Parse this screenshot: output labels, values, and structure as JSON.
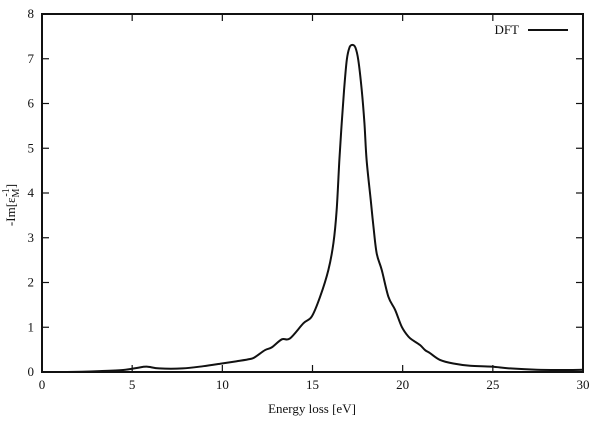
{
  "chart_data": {
    "type": "line",
    "title": "",
    "xlabel": "Energy loss [eV]",
    "ylabel": "-Im[ε_M^-1]",
    "ylabel_parts": {
      "main": "-Im[ε",
      "sub": "M",
      "sup": "-1",
      "close": "]"
    },
    "xlim": [
      0,
      30
    ],
    "ylim": [
      0,
      8
    ],
    "xticks": [
      0,
      5,
      10,
      15,
      20,
      25,
      30
    ],
    "yticks": [
      0,
      1,
      2,
      3,
      4,
      5,
      6,
      7,
      8
    ],
    "grid": false,
    "legend_position": "top-right",
    "series": [
      {
        "name": "DFT",
        "color": "#111111",
        "x": [
          0,
          1.4,
          3.2,
          4.5,
          5.25,
          5.8,
          6.5,
          7.8,
          8.95,
          9.97,
          10.8,
          11.54,
          11.8,
          12.37,
          12.74,
          13.3,
          13.75,
          14.5,
          14.96,
          15.42,
          15.88,
          16.16,
          16.34,
          16.49,
          16.62,
          16.75,
          16.9,
          17.05,
          17.21,
          17.38,
          17.54,
          17.73,
          17.88,
          18.0,
          18.23,
          18.38,
          18.56,
          18.84,
          19.21,
          19.58,
          19.95,
          20.32,
          20.6,
          20.97,
          21.24,
          21.52,
          22.07,
          22.81,
          23.74,
          24.94,
          25.96,
          27.44,
          28.73,
          30
        ],
        "y": [
          0,
          0,
          0.02,
          0.045,
          0.09,
          0.12,
          0.08,
          0.08,
          0.13,
          0.19,
          0.24,
          0.29,
          0.33,
          0.49,
          0.55,
          0.73,
          0.75,
          1.09,
          1.24,
          1.68,
          2.28,
          2.88,
          3.62,
          4.74,
          5.56,
          6.3,
          6.97,
          7.25,
          7.31,
          7.25,
          6.97,
          6.3,
          5.56,
          4.74,
          3.84,
          3.25,
          2.65,
          2.28,
          1.68,
          1.39,
          1.01,
          0.79,
          0.7,
          0.6,
          0.49,
          0.42,
          0.27,
          0.19,
          0.14,
          0.12,
          0.08,
          0.05,
          0.045,
          0.05
        ]
      }
    ]
  }
}
